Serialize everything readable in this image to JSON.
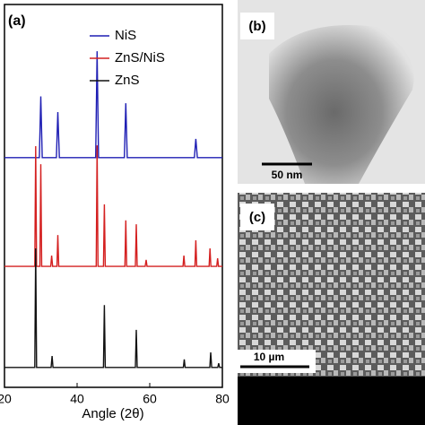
{
  "chart_data": {
    "type": "line",
    "panel_label": "(a)",
    "xlabel": "Angle (2θ)",
    "xlim": [
      20,
      80
    ],
    "xticks": [
      20,
      40,
      60,
      80
    ],
    "ylim": [
      0,
      100
    ],
    "legend": "upper right",
    "series": [
      {
        "name": "NiS",
        "color": "#1f1fb4",
        "x": [
          20,
          29.6,
          30,
          30.4,
          34.3,
          34.7,
          35.1,
          45.1,
          45.5,
          45.9,
          53.0,
          53.4,
          53.8,
          72.3,
          72.7,
          73.1,
          80
        ],
        "values": [
          60,
          60,
          76,
          60,
          60,
          71.9,
          60,
          60,
          87.8,
          60,
          60,
          74.2,
          60,
          60,
          64.9,
          60,
          60
        ]
      },
      {
        "name": "ZnS/NiS",
        "color": "#d42020",
        "x": [
          20,
          28.35,
          28.6,
          28.85,
          29.75,
          30,
          30.25,
          32.75,
          33,
          33.25,
          34.45,
          34.7,
          34.95,
          45.25,
          45.5,
          45.75,
          47.25,
          47.5,
          47.75,
          53.15,
          53.4,
          53.65,
          56.05,
          56.3,
          56.55,
          58.75,
          59,
          59.25,
          69.15,
          69.4,
          69.65,
          72.45,
          72.7,
          72.95,
          76.35,
          76.6,
          76.85,
          78.45,
          78.7,
          78.95,
          80
        ],
        "values": [
          31.6,
          31.6,
          63,
          31.6,
          31.6,
          58.3,
          31.6,
          31.6,
          34.4,
          31.6,
          31.6,
          39.8,
          31.6,
          31.6,
          63.2,
          31.6,
          31.6,
          47.8,
          31.6,
          31.6,
          43.6,
          31.6,
          31.6,
          42.6,
          31.6,
          31.6,
          33.3,
          31.6,
          31.6,
          34.4,
          31.6,
          31.6,
          38.4,
          31.6,
          31.6,
          36.3,
          31.6,
          31.6,
          33.7,
          31.6,
          31.6
        ]
      },
      {
        "name": "ZnS",
        "color": "#111111",
        "x": [
          20,
          28.35,
          28.6,
          28.85,
          32.85,
          33.1,
          33.35,
          47.25,
          47.5,
          47.75,
          56.05,
          56.3,
          56.55,
          69.25,
          69.5,
          69.75,
          76.55,
          76.8,
          77.05,
          78.75,
          79,
          79.25,
          80
        ],
        "values": [
          5.2,
          5.2,
          36.3,
          5.2,
          5.2,
          8.2,
          5.2,
          5.2,
          21.5,
          5.2,
          5.2,
          15,
          5.2,
          5.2,
          7.3,
          5.2,
          5.2,
          9.1,
          5.2,
          5.2,
          6.3,
          5.2,
          5.2
        ]
      }
    ]
  },
  "panels": [
    {
      "label": "(b)",
      "scale_bar": "50 nm"
    },
    {
      "label": "(c)",
      "scale_bar": "10 µm"
    }
  ]
}
